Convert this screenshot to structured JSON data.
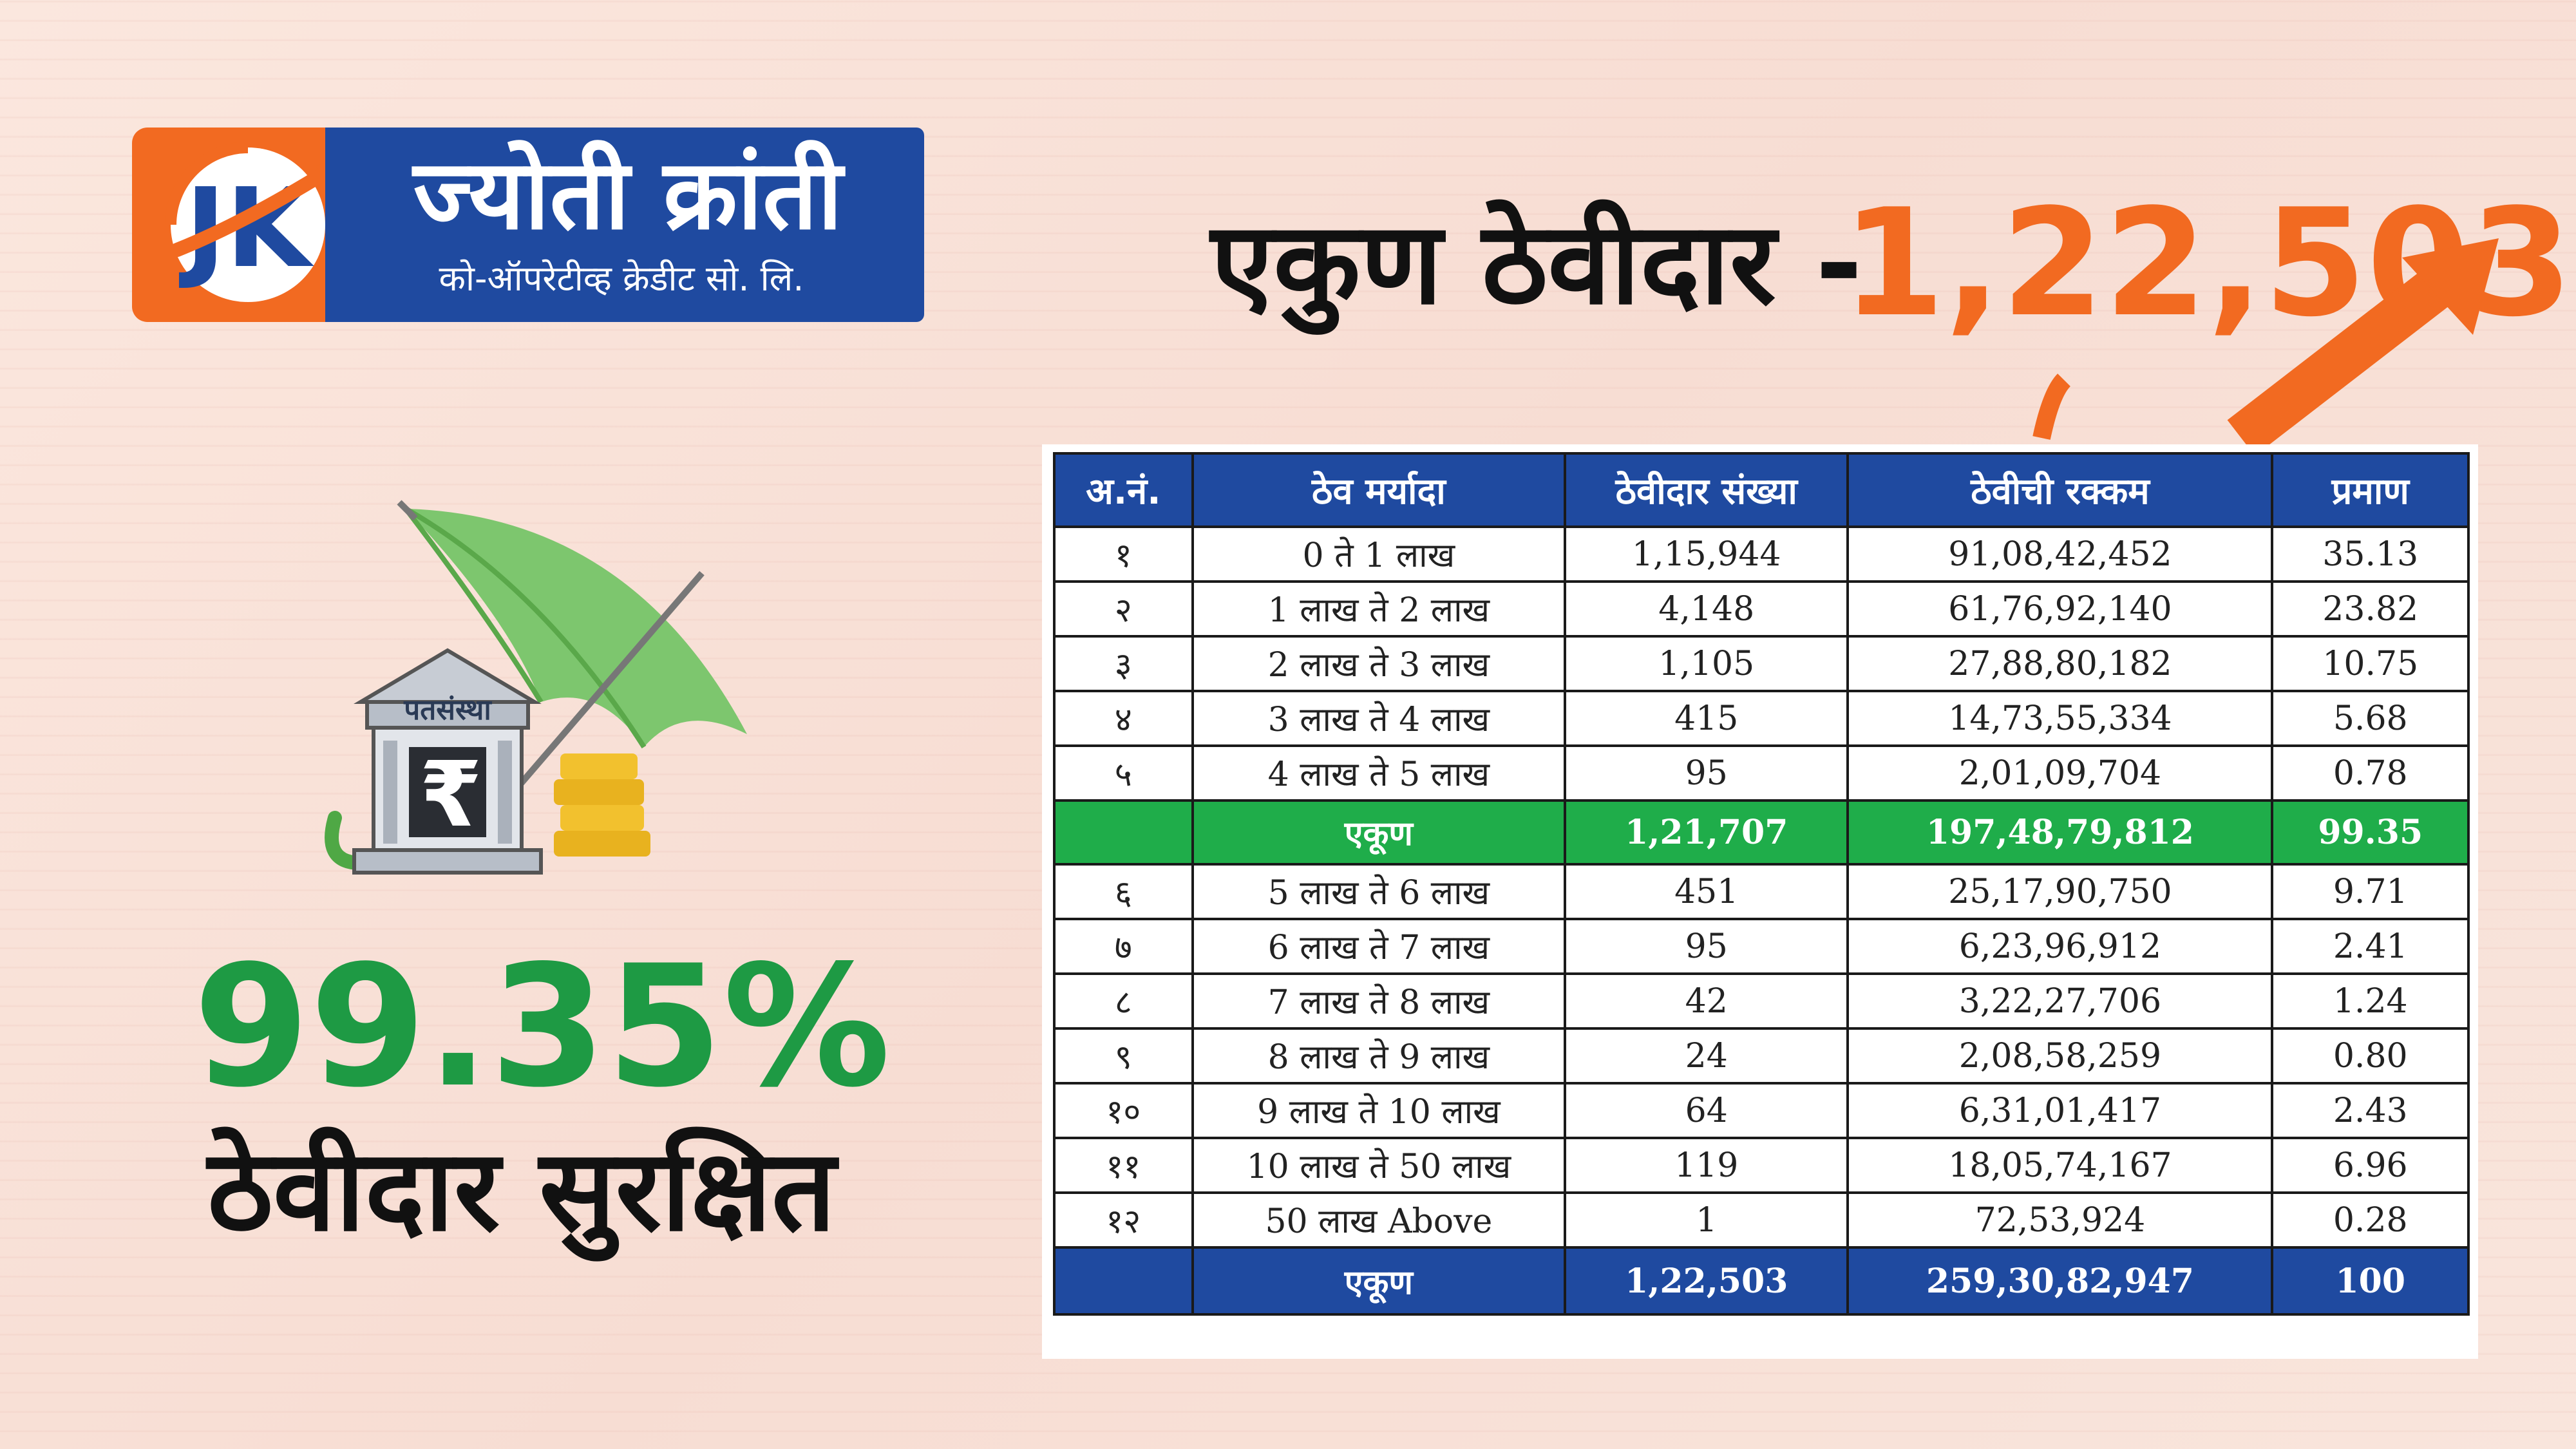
{
  "brand": {
    "name": "ज्योती क्रांती",
    "subtitle": "को-ऑपरेटीव्ह क्रेडीट सो. लि.",
    "mark_letters": "JK",
    "colors": {
      "orange": "#f26a21",
      "blue": "#1f4aa0"
    }
  },
  "headline": {
    "label": "एकुण ठेवीदार -",
    "value": "1,22,503"
  },
  "illustration": {
    "building_label": "पतसंस्था",
    "currency_symbol": "₹",
    "icons": [
      "umbrella-icon",
      "bank-building-icon",
      "coin-stack-icon",
      "trend-arrow-icon"
    ]
  },
  "highlight": {
    "percent": "99.35%",
    "label": "ठेवीदार सुरक्षित",
    "color": "#1e9a44"
  },
  "table": {
    "headers": [
      "अ.नं.",
      "ठेव मर्यादा",
      "ठेवीदार संख्या",
      "ठेवीची रक्कम",
      "प्रमाण"
    ],
    "rows_top": [
      [
        "१",
        "0 ते 1 लाख",
        "1,15,944",
        "91,08,42,452",
        "35.13"
      ],
      [
        "२",
        "1 लाख ते 2 लाख",
        "4,148",
        "61,76,92,140",
        "23.82"
      ],
      [
        "३",
        "2 लाख ते 3 लाख",
        "1,105",
        "27,88,80,182",
        "10.75"
      ],
      [
        "४",
        "3 लाख ते 4 लाख",
        "415",
        "14,73,55,334",
        "5.68"
      ],
      [
        "५",
        "4 लाख ते 5 लाख",
        "95",
        "2,01,09,704",
        "0.78"
      ]
    ],
    "subtotal": [
      "",
      "एकूण",
      "1,21,707",
      "197,48,79,812",
      "99.35"
    ],
    "rows_bottom": [
      [
        "६",
        "5 लाख ते 6 लाख",
        "451",
        "25,17,90,750",
        "9.71"
      ],
      [
        "७",
        "6 लाख ते 7 लाख",
        "95",
        "6,23,96,912",
        "2.41"
      ],
      [
        "८",
        "7 लाख ते 8 लाख",
        "42",
        "3,22,27,706",
        "1.24"
      ],
      [
        "९",
        "8 लाख ते 9 लाख",
        "24",
        "2,08,58,259",
        "0.80"
      ],
      [
        "१०",
        "9 लाख ते 10 लाख",
        "64",
        "6,31,01,417",
        "2.43"
      ],
      [
        "११",
        "10 लाख ते 50 लाख",
        "119",
        "18,05,74,167",
        "6.96"
      ],
      [
        "१२",
        "50 लाख  Above",
        "1",
        "72,53,924",
        "0.28"
      ]
    ],
    "total": [
      "",
      "एकूण",
      "1,22,503",
      "259,30,82,947",
      "100"
    ],
    "colors": {
      "header": "#1f4aa0",
      "subtotal": "#1fad4a",
      "total": "#1f4aa0"
    }
  }
}
